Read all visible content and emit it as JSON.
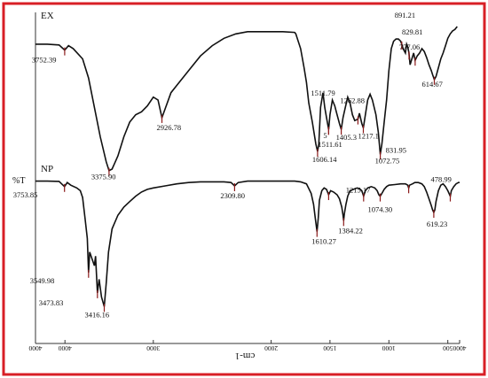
{
  "chart_data": [
    {
      "type": "line",
      "title": "EX",
      "ylabel": "",
      "xlabel": "cm-1",
      "xlim": [
        4000,
        400
      ],
      "ylim": [
        0,
        100
      ],
      "series": [
        {
          "points": [
            [
              4000,
              88
            ],
            [
              3900,
              88
            ],
            [
              3800,
              87.5
            ],
            [
              3752,
              84
            ],
            [
              3720,
              87
            ],
            [
              3680,
              85
            ],
            [
              3600,
              78
            ],
            [
              3550,
              65
            ],
            [
              3500,
              45
            ],
            [
              3450,
              25
            ],
            [
              3400,
              8
            ],
            [
              3376,
              2
            ],
            [
              3350,
              3
            ],
            [
              3300,
              12
            ],
            [
              3250,
              25
            ],
            [
              3200,
              35
            ],
            [
              3150,
              40
            ],
            [
              3100,
              42
            ],
            [
              3050,
              46
            ],
            [
              3000,
              52
            ],
            [
              2960,
              50
            ],
            [
              2927,
              38
            ],
            [
              2900,
              44
            ],
            [
              2850,
              55
            ],
            [
              2800,
              60
            ],
            [
              2700,
              70
            ],
            [
              2600,
              80
            ],
            [
              2500,
              87
            ],
            [
              2400,
              92
            ],
            [
              2300,
              95
            ],
            [
              2200,
              96.5
            ],
            [
              2100,
              96.5
            ],
            [
              2000,
              96.5
            ],
            [
              1900,
              96.5
            ],
            [
              1800,
              96
            ],
            [
              1790,
              95
            ],
            [
              1750,
              85
            ],
            [
              1720,
              72
            ],
            [
              1700,
              62
            ],
            [
              1680,
              48
            ],
            [
              1650,
              35
            ],
            [
              1620,
              20
            ],
            [
              1606,
              15
            ],
            [
              1595,
              20
            ],
            [
              1580,
              45
            ],
            [
              1560,
              55
            ],
            [
              1545,
              45
            ],
            [
              1530,
              38
            ],
            [
              1512,
              30
            ],
            [
              1500,
              40
            ],
            [
              1480,
              50
            ],
            [
              1460,
              46
            ],
            [
              1440,
              40
            ],
            [
              1420,
              34
            ],
            [
              1405,
              30
            ],
            [
              1390,
              38
            ],
            [
              1370,
              45
            ],
            [
              1350,
              52
            ],
            [
              1330,
              48
            ],
            [
              1310,
              40
            ],
            [
              1290,
              36
            ],
            [
              1263,
              37
            ],
            [
              1250,
              41
            ],
            [
              1230,
              34
            ],
            [
              1217,
              31
            ],
            [
              1200,
              40
            ],
            [
              1180,
              50
            ],
            [
              1160,
              54
            ],
            [
              1140,
              50
            ],
            [
              1110,
              40
            ],
            [
              1090,
              28
            ],
            [
              1073,
              13
            ],
            [
              1060,
              20
            ],
            [
              1040,
              35
            ],
            [
              1020,
              50
            ],
            [
              1000,
              70
            ],
            [
              980,
              85
            ],
            [
              960,
              90
            ],
            [
              940,
              91.5
            ],
            [
              920,
              91.5
            ],
            [
              900,
              90
            ],
            [
              891,
              88
            ],
            [
              880,
              85
            ],
            [
              860,
              82
            ],
            [
              850,
              88
            ],
            [
              840,
              86
            ],
            [
              830,
              82
            ],
            [
              820,
              74
            ],
            [
              805,
              78
            ],
            [
              790,
              82
            ],
            [
              777,
              77
            ],
            [
              760,
              80
            ],
            [
              740,
              82
            ],
            [
              720,
              85
            ],
            [
              700,
              83
            ],
            [
              680,
              79
            ],
            [
              660,
              74
            ],
            [
              640,
              70
            ],
            [
              628,
              67
            ],
            [
              615,
              64
            ],
            [
              600,
              66
            ],
            [
              580,
              72
            ],
            [
              560,
              78
            ],
            [
              540,
              82
            ],
            [
              520,
              87
            ],
            [
              500,
              92
            ],
            [
              480,
              95
            ],
            [
              460,
              97
            ],
            [
              440,
              98
            ],
            [
              420,
              100
            ]
          ]
        }
      ],
      "annotations": [
        {
          "x": 3752,
          "label": "3752.39"
        },
        {
          "x": 3376,
          "label": "3375.90"
        },
        {
          "x": 2927,
          "label": "2926.78"
        },
        {
          "x": 1606,
          "label": "1606.14"
        },
        {
          "x": 1512,
          "label": "1511.79"
        },
        {
          "x": 1512,
          "label": "5"
        },
        {
          "x": 1405,
          "label": "1405.3"
        },
        {
          "x": 1263,
          "label": "1262.88"
        },
        {
          "x": 1217,
          "label": "1217.1"
        },
        {
          "x": 1073,
          "label": "1072.75"
        },
        {
          "x": 891,
          "label": "891.21"
        },
        {
          "x": 829,
          "label": "829.81"
        },
        {
          "x": 777,
          "label": "777.06"
        },
        {
          "x": 615,
          "label": "614.67"
        }
      ]
    },
    {
      "type": "line",
      "title": "NP",
      "ylabel": "%T",
      "xlabel": "cm-1",
      "xlim": [
        4000,
        400
      ],
      "ylim": [
        0,
        100
      ],
      "series": [
        {
          "points": [
            [
              4000,
              97
            ],
            [
              3900,
              97
            ],
            [
              3800,
              96.8
            ],
            [
              3754,
              93
            ],
            [
              3730,
              96
            ],
            [
              3700,
              94
            ],
            [
              3650,
              92
            ],
            [
              3620,
              90
            ],
            [
              3600,
              85
            ],
            [
              3580,
              70
            ],
            [
              3560,
              55
            ],
            [
              3550,
              30
            ],
            [
              3540,
              45
            ],
            [
              3520,
              40
            ],
            [
              3500,
              35
            ],
            [
              3490,
              42
            ],
            [
              3474,
              15
            ],
            [
              3460,
              25
            ],
            [
              3440,
              12
            ],
            [
              3416,
              5
            ],
            [
              3400,
              22
            ],
            [
              3380,
              45
            ],
            [
              3350,
              62
            ],
            [
              3300,
              72
            ],
            [
              3250,
              78
            ],
            [
              3200,
              82
            ],
            [
              3150,
              86
            ],
            [
              3100,
              89
            ],
            [
              3050,
              91
            ],
            [
              3000,
              92
            ],
            [
              2900,
              93.5
            ],
            [
              2800,
              95
            ],
            [
              2700,
              96
            ],
            [
              2600,
              96.5
            ],
            [
              2500,
              96.5
            ],
            [
              2400,
              96.5
            ],
            [
              2340,
              96
            ],
            [
              2310,
              93.5
            ],
            [
              2280,
              96
            ],
            [
              2200,
              97
            ],
            [
              2100,
              97
            ],
            [
              2000,
              97
            ],
            [
              1900,
              97
            ],
            [
              1800,
              97
            ],
            [
              1750,
              96.5
            ],
            [
              1700,
              95
            ],
            [
              1660,
              88
            ],
            [
              1640,
              80
            ],
            [
              1625,
              70
            ],
            [
              1610,
              60
            ],
            [
              1600,
              70
            ],
            [
              1590,
              83
            ],
            [
              1570,
              90
            ],
            [
              1550,
              92
            ],
            [
              1530,
              91
            ],
            [
              1512,
              87
            ],
            [
              1495,
              90
            ],
            [
              1470,
              89
            ],
            [
              1440,
              87
            ],
            [
              1420,
              84
            ],
            [
              1400,
              78
            ],
            [
              1390,
              72
            ],
            [
              1384,
              68
            ],
            [
              1378,
              73
            ],
            [
              1365,
              80
            ],
            [
              1350,
              86
            ],
            [
              1330,
              90
            ],
            [
              1300,
              91
            ],
            [
              1270,
              92
            ],
            [
              1250,
              91.5
            ],
            [
              1230,
              90
            ],
            [
              1215,
              86
            ],
            [
              1200,
              90
            ],
            [
              1180,
              92
            ],
            [
              1150,
              93
            ],
            [
              1120,
              92
            ],
            [
              1100,
              90
            ],
            [
              1085,
              87
            ],
            [
              1074,
              86
            ],
            [
              1060,
              88
            ],
            [
              1040,
              91
            ],
            [
              1020,
              93
            ],
            [
              1000,
              94
            ],
            [
              950,
              94.5
            ],
            [
              900,
              95
            ],
            [
              860,
              95
            ],
            [
              840,
              94
            ],
            [
              832,
              92
            ],
            [
              825,
              94
            ],
            [
              800,
              95
            ],
            [
              780,
              96
            ],
            [
              750,
              96
            ],
            [
              720,
              95
            ],
            [
              700,
              93
            ],
            [
              680,
              89
            ],
            [
              660,
              84
            ],
            [
              640,
              79
            ],
            [
              630,
              76
            ],
            [
              619,
              74
            ],
            [
              610,
              76
            ],
            [
              600,
              82
            ],
            [
              580,
              90
            ],
            [
              560,
              94
            ],
            [
              540,
              95
            ],
            [
              520,
              93
            ],
            [
              500,
              90
            ],
            [
              490,
              88
            ],
            [
              479,
              86
            ],
            [
              470,
              90
            ],
            [
              450,
              93
            ],
            [
              430,
              95
            ],
            [
              410,
              96
            ],
            [
              400,
              96
            ]
          ]
        }
      ],
      "annotations": [
        {
          "x": 3754,
          "label": "3753.85"
        },
        {
          "x": 3550,
          "label": "3549.98"
        },
        {
          "x": 3474,
          "label": "3473.83"
        },
        {
          "x": 3416,
          "label": "3416.16"
        },
        {
          "x": 2310,
          "label": "2309.80"
        },
        {
          "x": 1610,
          "label": "1610.27"
        },
        {
          "x": 1512,
          "label": "1511.61"
        },
        {
          "x": 1384,
          "label": "1384.22"
        },
        {
          "x": 1215,
          "label": "1215.17"
        },
        {
          "x": 1074,
          "label": "1074.30"
        },
        {
          "x": 832,
          "label": "831.95"
        },
        {
          "x": 619,
          "label": "619.23"
        },
        {
          "x": 479,
          "label": "478.99"
        }
      ]
    }
  ],
  "x_axis": {
    "tick_labels": [
      "4000",
      "4000",
      "3000",
      "2000",
      "1500",
      "1000",
      "500",
      "4000"
    ],
    "label": "cm-1"
  },
  "colors": {
    "frame": "#d81f26",
    "line": "#111111",
    "marker": "#8b1a1a"
  }
}
